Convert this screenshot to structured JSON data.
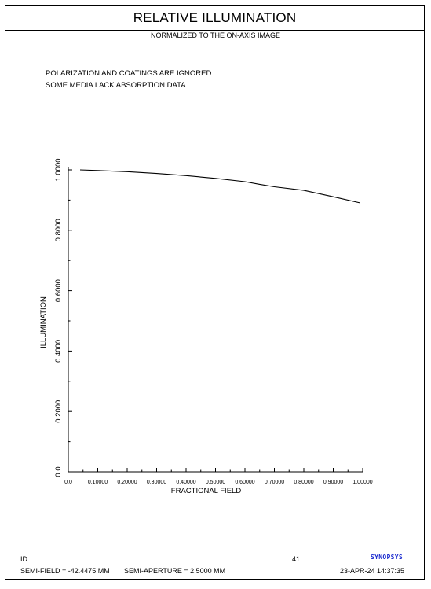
{
  "header": {
    "title": "RELATIVE ILLUMINATION",
    "subtitle": "NORMALIZED TO THE ON-AXIS IMAGE"
  },
  "notes": {
    "line1": "POLARIZATION AND COATINGS ARE IGNORED",
    "line2": "SOME MEDIA LACK ABSORPTION DATA"
  },
  "chart_data": {
    "type": "line",
    "xlabel": "FRACTIONAL FIELD",
    "ylabel": "ILLUMINATION",
    "xlim": [
      0,
      1
    ],
    "ylim": [
      0,
      1
    ],
    "x_ticks": [
      "0.0",
      "0.10000",
      "0.20000",
      "0.30000",
      "0.40000",
      "0.50000",
      "0.60000",
      "0.70000",
      "0.80000",
      "0.90000",
      "1.00000"
    ],
    "y_ticks": [
      "0.0",
      "0.2000",
      "0.4000",
      "0.6000",
      "0.8000",
      "1.0000"
    ],
    "grid": false,
    "line_color": "#000000",
    "series": [
      {
        "x": [
          0.04,
          0.1,
          0.2,
          0.3,
          0.4,
          0.5,
          0.6,
          0.65,
          0.7,
          0.8,
          0.9,
          0.99
        ],
        "values": [
          1.0,
          0.998,
          0.994,
          0.988,
          0.981,
          0.972,
          0.961,
          0.952,
          0.944,
          0.932,
          0.911,
          0.891
        ]
      }
    ]
  },
  "footer": {
    "id_label": "ID",
    "page_number": "41",
    "semi_field": "SEMI-FIELD =  -42.4475 MM",
    "semi_aperture": "SEMI-APERTURE =   2.5000 MM",
    "date_time": "23-APR-24  14:37:35",
    "logo_text": "SYNOPSYS"
  }
}
